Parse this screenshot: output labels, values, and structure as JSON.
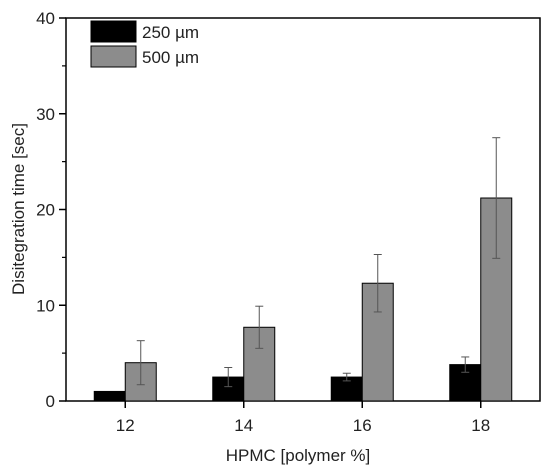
{
  "chart_data": {
    "type": "bar",
    "title": "",
    "xlabel": "HPMC [polymer %]",
    "ylabel": "Disitegration time [sec]",
    "categories": [
      "12",
      "14",
      "16",
      "18"
    ],
    "ylim": [
      0,
      40
    ],
    "yticks": [
      "0",
      "10",
      "20",
      "30",
      "40"
    ],
    "grid": false,
    "legend_position": "top-left",
    "series": [
      {
        "name": "250 µm",
        "color": "#000000",
        "values": [
          1.0,
          2.5,
          2.5,
          3.8
        ],
        "errors": [
          0,
          1.0,
          0.4,
          0.8
        ]
      },
      {
        "name": "500 µm",
        "color": "#8c8c8c",
        "values": [
          4.0,
          7.7,
          12.3,
          21.2
        ],
        "errors": [
          2.3,
          2.2,
          3.0,
          6.3
        ]
      }
    ]
  }
}
